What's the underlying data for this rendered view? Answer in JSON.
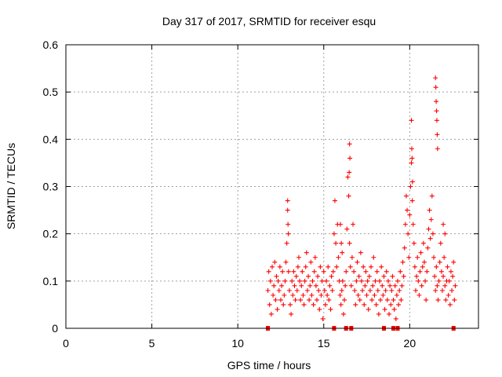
{
  "chart_data": {
    "type": "scatter",
    "title": "Day 317 of 2017, SRMTID for receiver esqu",
    "xlabel": "GPS time / hours",
    "ylabel": "SRMTID / TECUs",
    "xlim": [
      0,
      24
    ],
    "ylim": [
      0,
      0.6
    ],
    "xticks": [
      0,
      5,
      10,
      15,
      20
    ],
    "yticks": [
      0,
      0.1,
      0.2,
      0.3,
      0.4,
      0.5,
      0.6
    ],
    "xtick_labels": [
      "0",
      "5",
      "10",
      "15",
      "20"
    ],
    "ytick_labels": [
      "0",
      "0.1",
      "0.2",
      "0.3",
      "0.4",
      "0.5",
      "0.6"
    ],
    "grid": true,
    "marker": "+",
    "color": "#ff0000",
    "series": [
      {
        "name": "SRMTID",
        "x": [
          11.75,
          11.8,
          11.85,
          11.9,
          11.95,
          12.0,
          12.05,
          12.1,
          12.15,
          12.2,
          12.25,
          12.3,
          12.35,
          12.4,
          12.45,
          12.5,
          12.55,
          12.6,
          12.65,
          12.7,
          12.75,
          12.8,
          12.85,
          12.9,
          12.95,
          13.0,
          13.05,
          13.1,
          13.15,
          13.2,
          13.25,
          13.3,
          13.35,
          13.4,
          13.45,
          13.5,
          13.55,
          13.6,
          13.65,
          13.7,
          13.75,
          13.8,
          13.85,
          13.9,
          13.95,
          14.0,
          14.05,
          14.1,
          14.15,
          14.2,
          14.25,
          14.3,
          14.35,
          14.4,
          14.45,
          14.5,
          14.55,
          14.6,
          14.65,
          14.7,
          14.75,
          14.8,
          14.85,
          14.9,
          14.95,
          15.0,
          15.05,
          15.1,
          15.15,
          15.2,
          15.25,
          15.3,
          15.35,
          15.4,
          15.45,
          15.5,
          15.55,
          15.6,
          15.65,
          15.7,
          15.75,
          15.8,
          15.85,
          15.9,
          15.95,
          16.0,
          16.05,
          16.1,
          16.15,
          16.2,
          16.25,
          16.3,
          16.35,
          16.4,
          16.45,
          16.5,
          16.55,
          16.6,
          16.65,
          16.7,
          16.75,
          16.8,
          16.85,
          16.9,
          16.95,
          17.0,
          17.05,
          17.1,
          17.15,
          17.2,
          17.25,
          17.3,
          17.35,
          17.4,
          17.45,
          17.5,
          17.55,
          17.6,
          17.65,
          17.7,
          17.75,
          17.8,
          17.85,
          17.9,
          17.95,
          18.0,
          18.05,
          18.1,
          18.15,
          18.2,
          18.25,
          18.3,
          18.35,
          18.4,
          18.45,
          18.5,
          18.55,
          18.6,
          18.65,
          18.7,
          18.75,
          18.8,
          18.85,
          18.9,
          18.95,
          19.0,
          19.05,
          19.1,
          19.15,
          19.2,
          19.25,
          19.3,
          19.35,
          19.4,
          19.45,
          19.5,
          19.55,
          19.6,
          19.65,
          19.7,
          19.75,
          19.8,
          19.85,
          19.9,
          19.95,
          20.0,
          20.05,
          20.1,
          20.15,
          20.2,
          20.25,
          20.3,
          20.35,
          20.4,
          20.45,
          20.5,
          20.55,
          20.6,
          20.65,
          20.7,
          20.75,
          20.8,
          20.85,
          20.9,
          20.95,
          21.0,
          21.05,
          21.1,
          21.15,
          21.2,
          21.25,
          21.3,
          21.35,
          21.4,
          21.45,
          21.5,
          21.55,
          21.6,
          21.65,
          21.7,
          21.75,
          21.8,
          21.85,
          21.9,
          21.95,
          22.0,
          22.05,
          22.1,
          22.15,
          22.2,
          22.25,
          22.3,
          22.35,
          22.4,
          22.45,
          22.5,
          22.55,
          22.6,
          22.65,
          12.9,
          12.92,
          12.94,
          16.5,
          16.52,
          16.48,
          20.1,
          20.12,
          20.14,
          20.16,
          21.5,
          21.52,
          21.54,
          21.56,
          21.58,
          21.6,
          21.62,
          15.97,
          16.02,
          16.07,
          21.95,
          22.05,
          11.75,
          15.6,
          16.3,
          16.6,
          18.5,
          19.05,
          19.3,
          22.55
        ],
        "y": [
          0.08,
          0.12,
          0.05,
          0.1,
          0.03,
          0.13,
          0.07,
          0.09,
          0.14,
          0.06,
          0.11,
          0.04,
          0.1,
          0.08,
          0.13,
          0.06,
          0.09,
          0.12,
          0.05,
          0.07,
          0.1,
          0.14,
          0.18,
          0.25,
          0.12,
          0.08,
          0.05,
          0.03,
          0.1,
          0.07,
          0.12,
          0.09,
          0.06,
          0.11,
          0.08,
          0.13,
          0.15,
          0.1,
          0.06,
          0.09,
          0.12,
          0.07,
          0.05,
          0.1,
          0.13,
          0.16,
          0.08,
          0.11,
          0.06,
          0.09,
          0.14,
          0.07,
          0.1,
          0.05,
          0.12,
          0.15,
          0.09,
          0.06,
          0.11,
          0.08,
          0.04,
          0.13,
          0.07,
          0.1,
          0.02,
          0.12,
          0.08,
          0.05,
          0.1,
          0.07,
          0.13,
          0.06,
          0.09,
          0.04,
          0.11,
          0.08,
          0.12,
          0.2,
          0.27,
          0.18,
          0.13,
          0.22,
          0.15,
          0.1,
          0.07,
          0.05,
          0.08,
          0.1,
          0.03,
          0.06,
          0.09,
          0.12,
          0.21,
          0.32,
          0.28,
          0.18,
          0.13,
          0.09,
          0.15,
          0.22,
          0.12,
          0.08,
          0.05,
          0.1,
          0.14,
          0.07,
          0.11,
          0.06,
          0.16,
          0.1,
          0.08,
          0.13,
          0.05,
          0.09,
          0.12,
          0.07,
          0.1,
          0.04,
          0.11,
          0.08,
          0.13,
          0.06,
          0.09,
          0.15,
          0.07,
          0.1,
          0.05,
          0.12,
          0.08,
          0.03,
          0.1,
          0.06,
          0.13,
          0.09,
          0.07,
          0.11,
          0.04,
          0.08,
          0.12,
          0.06,
          0.1,
          0.03,
          0.09,
          0.05,
          0.08,
          0.11,
          0.06,
          0.04,
          0.09,
          0.02,
          0.07,
          0.1,
          0.05,
          0.08,
          0.12,
          0.06,
          0.09,
          0.14,
          0.11,
          0.17,
          0.22,
          0.28,
          0.25,
          0.2,
          0.15,
          0.24,
          0.3,
          0.35,
          0.27,
          0.22,
          0.18,
          0.13,
          0.08,
          0.11,
          0.15,
          0.1,
          0.07,
          0.12,
          0.16,
          0.09,
          0.13,
          0.18,
          0.14,
          0.1,
          0.06,
          0.12,
          0.17,
          0.21,
          0.25,
          0.19,
          0.23,
          0.28,
          0.2,
          0.15,
          0.11,
          0.08,
          0.13,
          0.09,
          0.06,
          0.1,
          0.14,
          0.18,
          0.12,
          0.08,
          0.11,
          0.15,
          0.09,
          0.06,
          0.1,
          0.13,
          0.07,
          0.1,
          0.05,
          0.12,
          0.08,
          0.11,
          0.14,
          0.06,
          0.09,
          0.27,
          0.22,
          0.2,
          0.39,
          0.36,
          0.33,
          0.44,
          0.38,
          0.36,
          0.31,
          0.53,
          0.51,
          0.48,
          0.46,
          0.44,
          0.41,
          0.38,
          0.22,
          0.18,
          0.16,
          0.22,
          0.2,
          0.0,
          0.0,
          0.0,
          0.0,
          0.0,
          0.0,
          0.0,
          0.0
        ]
      }
    ]
  }
}
